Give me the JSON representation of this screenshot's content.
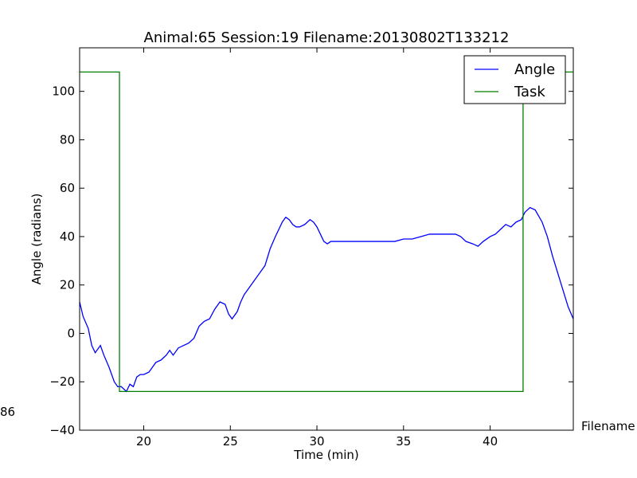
{
  "chart_data": {
    "type": "line",
    "title": "Animal:65  Session:19 Filename:20130802T133212",
    "xlabel": "Time (min)",
    "ylabel": "Angle (radians)",
    "xlim": [
      16.3,
      44.8
    ],
    "ylim": [
      -40,
      118
    ],
    "xticks": [
      20,
      25,
      30,
      35,
      40
    ],
    "yticks": [
      -40,
      -20,
      0,
      20,
      40,
      60,
      80,
      100
    ],
    "grid": false,
    "legend_position": "top-right",
    "series": [
      {
        "name": "Angle",
        "color": "#0000ff",
        "x": [
          16.3,
          16.5,
          16.8,
          17.0,
          17.2,
          17.5,
          17.7,
          18.0,
          18.3,
          18.5,
          18.7,
          19.0,
          19.2,
          19.4,
          19.6,
          19.8,
          20.0,
          20.3,
          20.5,
          20.7,
          21.0,
          21.3,
          21.5,
          21.7,
          22.0,
          22.3,
          22.6,
          22.9,
          23.2,
          23.5,
          23.8,
          24.1,
          24.4,
          24.7,
          24.9,
          25.1,
          25.4,
          25.6,
          25.8,
          26.1,
          26.4,
          26.7,
          27.0,
          27.3,
          27.6,
          27.8,
          28.0,
          28.2,
          28.4,
          28.6,
          28.8,
          29.0,
          29.3,
          29.6,
          29.8,
          30.0,
          30.2,
          30.4,
          30.6,
          30.8,
          31.0,
          31.5,
          32.5,
          33.5,
          34.5,
          35.0,
          35.5,
          36.0,
          36.5,
          37.0,
          37.5,
          38.0,
          38.3,
          38.6,
          39.0,
          39.3,
          39.6,
          40.0,
          40.3,
          40.6,
          40.9,
          41.2,
          41.5,
          41.8,
          42.0,
          42.3,
          42.6,
          43.0,
          43.3,
          43.6,
          43.9,
          44.2,
          44.5,
          44.8
        ],
        "values": [
          13,
          7,
          2,
          -5,
          -8,
          -5,
          -9,
          -14,
          -20,
          -22,
          -22,
          -24,
          -21,
          -22,
          -18,
          -17,
          -17,
          -16,
          -14,
          -12,
          -11,
          -9,
          -7,
          -9,
          -6,
          -5,
          -4,
          -2,
          3,
          5,
          6,
          10,
          13,
          12,
          8,
          6,
          9,
          13,
          16,
          19,
          22,
          25,
          28,
          35,
          40,
          43,
          46,
          48,
          47,
          45,
          44,
          44,
          45,
          47,
          46,
          44,
          41,
          38,
          37,
          38,
          38,
          38,
          38,
          38,
          38,
          39,
          39,
          40,
          41,
          41,
          41,
          41,
          40,
          38,
          37,
          36,
          38,
          40,
          41,
          43,
          45,
          44,
          46,
          47,
          50,
          52,
          51,
          46,
          40,
          32,
          25,
          18,
          11,
          6
        ]
      },
      {
        "name": "Task",
        "color": "#008000",
        "x": [
          16.3,
          18.6,
          18.6,
          41.9,
          41.9,
          44.8
        ],
        "values": [
          108,
          108,
          -24,
          -24,
          108,
          108
        ]
      }
    ],
    "side_labels": {
      "left": "86",
      "right": "Filename"
    }
  }
}
